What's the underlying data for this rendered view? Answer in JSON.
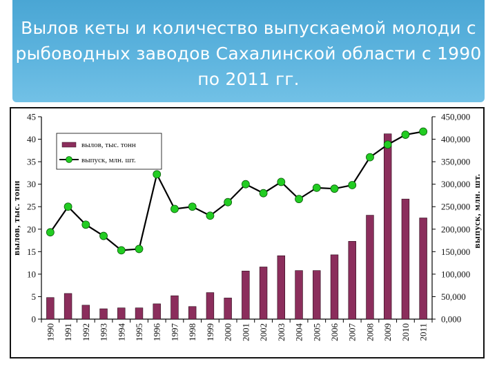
{
  "slide": {
    "title": "Вылов кеты и количество выпускаемой молоди с рыбоводных заводов Сахалинской области с 1990 по 2011 гг."
  },
  "colors": {
    "header": "#5fb5df",
    "bar": "#8b2e5c",
    "line": "#000000",
    "marker": "#22cc22"
  },
  "chart_data": {
    "type": "bar",
    "categories": [
      "1990",
      "1991",
      "1992",
      "1993",
      "1994",
      "1995",
      "1996",
      "1997",
      "1998",
      "1999",
      "2000",
      "2001",
      "2002",
      "2003",
      "2004",
      "2005",
      "2006",
      "2007",
      "2008",
      "2009",
      "2010",
      "2011"
    ],
    "series": [
      {
        "name": "вылов, тыс. тонн",
        "type": "bar",
        "axis": "left",
        "values": [
          4.8,
          5.7,
          3.1,
          2.3,
          2.5,
          2.5,
          3.4,
          5.2,
          2.8,
          5.9,
          4.7,
          10.7,
          11.6,
          14.1,
          10.8,
          10.8,
          14.3,
          17.3,
          23.1,
          41.2,
          26.7,
          22.5
        ]
      },
      {
        "name": "выпуск, млн. шт.",
        "type": "line",
        "axis": "right",
        "values": [
          193000,
          250000,
          210000,
          185000,
          153000,
          156000,
          322000,
          245000,
          250000,
          230000,
          260000,
          300000,
          280000,
          305000,
          267000,
          292000,
          290000,
          298000,
          360000,
          388000,
          410000,
          417000
        ]
      }
    ],
    "ylabel": "вылов, тыс. тонн",
    "y2label": "выпуск, млн. шт.",
    "ylim": [
      0,
      45
    ],
    "y2lim": [
      0,
      450000
    ],
    "yticks": [
      "0",
      "5",
      "10",
      "15",
      "20",
      "25",
      "30",
      "35",
      "40",
      "45"
    ],
    "y2ticks": [
      "0,000",
      "50,000",
      "100,000",
      "150,000",
      "200,000",
      "250,000",
      "300,000",
      "350,000",
      "400,000",
      "450,000"
    ],
    "legend": "top-left",
    "grid": false
  }
}
